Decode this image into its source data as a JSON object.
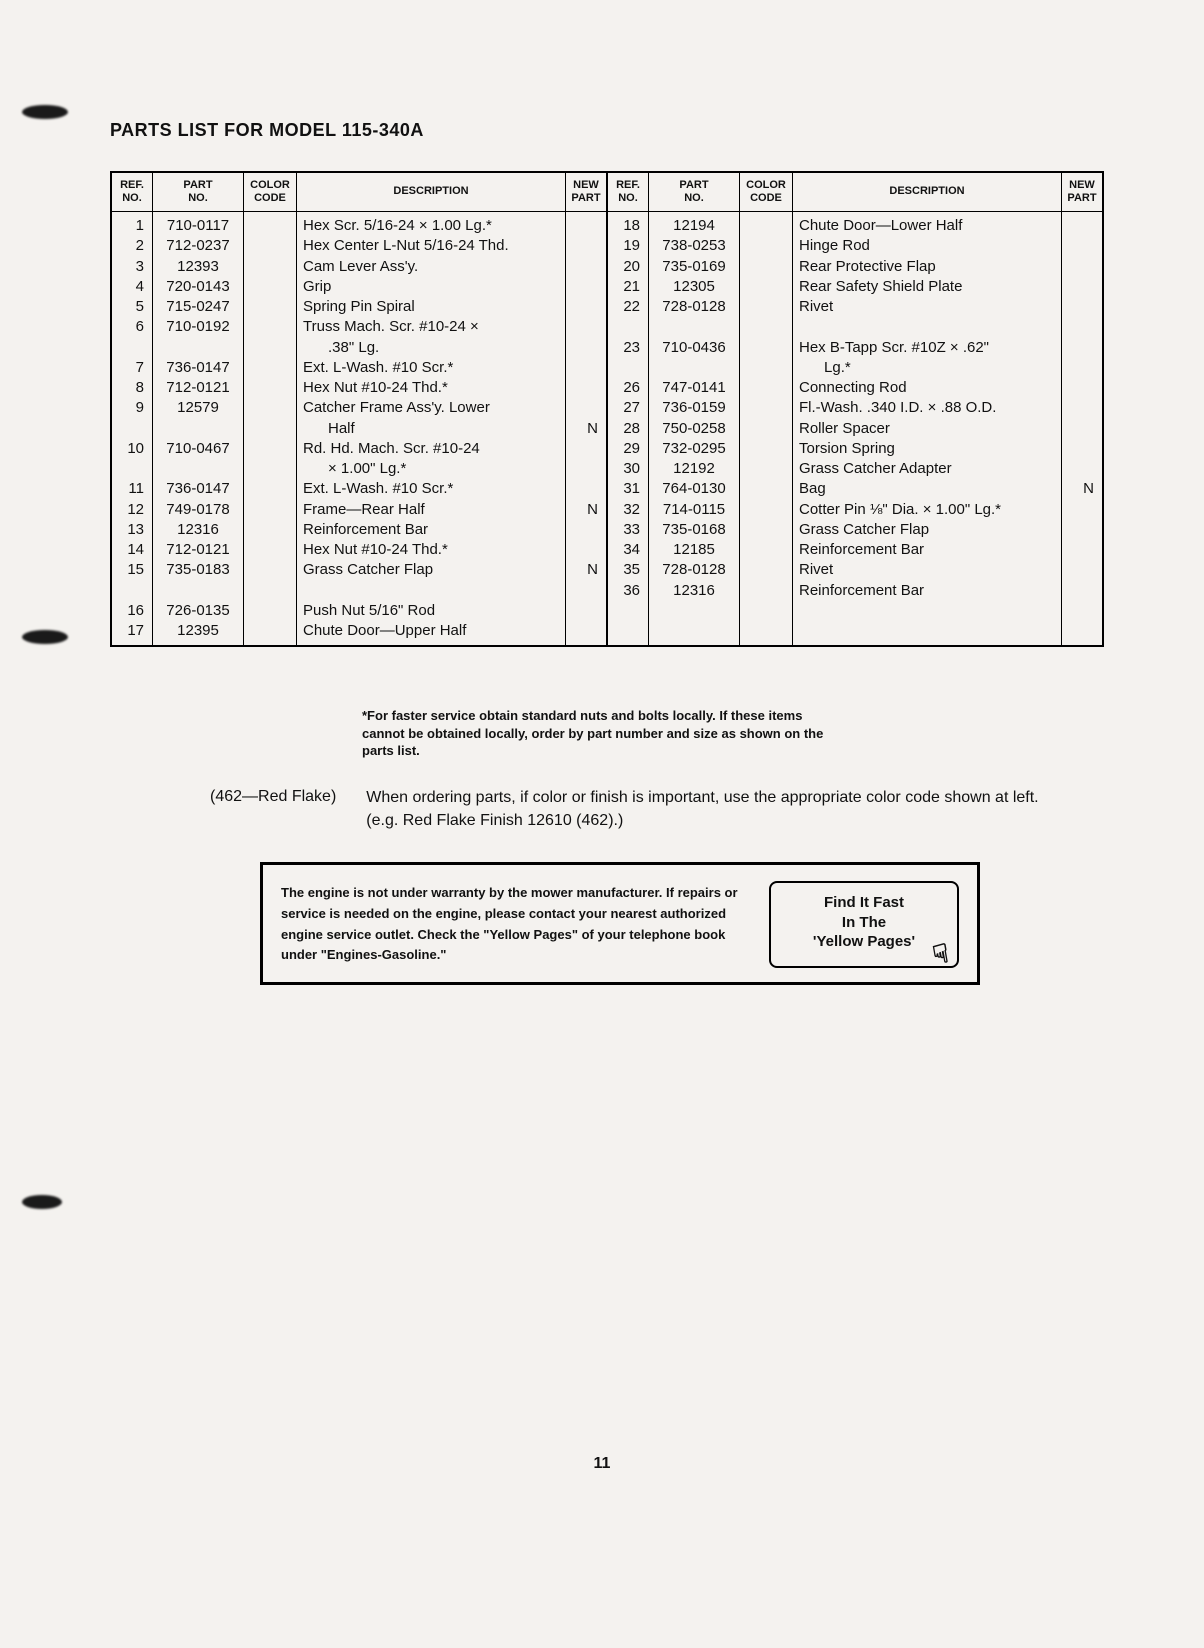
{
  "title": "PARTS LIST FOR MODEL 115-340A",
  "page_number": "11",
  "table": {
    "headers": {
      "ref": "REF.\nNO.",
      "part": "PART\nNO.",
      "color": "COLOR\nCODE",
      "desc": "DESCRIPTION",
      "new": "NEW\nPART"
    },
    "left": [
      {
        "ref": "1",
        "part": "710-0117",
        "color": "",
        "desc": "Hex Scr. 5/16-24 × 1.00 Lg.*",
        "new": ""
      },
      {
        "ref": "2",
        "part": "712-0237",
        "color": "",
        "desc": "Hex Center L-Nut 5/16-24 Thd.",
        "new": ""
      },
      {
        "ref": "3",
        "part": "12393",
        "color": "",
        "desc": "Cam Lever Ass'y.",
        "new": ""
      },
      {
        "ref": "4",
        "part": "720-0143",
        "color": "",
        "desc": "Grip",
        "new": ""
      },
      {
        "ref": "5",
        "part": "715-0247",
        "color": "",
        "desc": "Spring Pin Spiral",
        "new": ""
      },
      {
        "ref": "6",
        "part": "710-0192",
        "color": "",
        "desc": "Truss Mach. Scr. #10-24 ×",
        "new": ""
      },
      {
        "ref": "",
        "part": "",
        "color": "",
        "desc": "      .38\" Lg.",
        "new": ""
      },
      {
        "ref": "7",
        "part": "736-0147",
        "color": "",
        "desc": "Ext. L-Wash. #10 Scr.*",
        "new": ""
      },
      {
        "ref": "8",
        "part": "712-0121",
        "color": "",
        "desc": "Hex Nut #10-24 Thd.*",
        "new": ""
      },
      {
        "ref": "9",
        "part": "12579",
        "color": "",
        "desc": "Catcher Frame Ass'y. Lower",
        "new": ""
      },
      {
        "ref": "",
        "part": "",
        "color": "",
        "desc": "      Half",
        "new": "N"
      },
      {
        "ref": "10",
        "part": "710-0467",
        "color": "",
        "desc": "Rd. Hd. Mach. Scr. #10-24",
        "new": ""
      },
      {
        "ref": "",
        "part": "",
        "color": "",
        "desc": "      × 1.00\" Lg.*",
        "new": ""
      },
      {
        "ref": "11",
        "part": "736-0147",
        "color": "",
        "desc": "Ext. L-Wash. #10 Scr.*",
        "new": ""
      },
      {
        "ref": "12",
        "part": "749-0178",
        "color": "",
        "desc": "Frame—Rear Half",
        "new": "N"
      },
      {
        "ref": "13",
        "part": "12316",
        "color": "",
        "desc": "Reinforcement Bar",
        "new": ""
      },
      {
        "ref": "14",
        "part": "712-0121",
        "color": "",
        "desc": "Hex Nut #10-24 Thd.*",
        "new": ""
      },
      {
        "ref": "15",
        "part": "735-0183",
        "color": "",
        "desc": "Grass Catcher Flap",
        "new": "N"
      },
      {
        "ref": "",
        "part": "",
        "color": "",
        "desc": "",
        "new": ""
      },
      {
        "ref": "16",
        "part": "726-0135",
        "color": "",
        "desc": "Push Nut 5/16\" Rod",
        "new": ""
      },
      {
        "ref": "17",
        "part": "12395",
        "color": "",
        "desc": "Chute Door—Upper Half",
        "new": ""
      }
    ],
    "right": [
      {
        "ref": "18",
        "part": "12194",
        "color": "",
        "desc": "Chute Door—Lower Half",
        "new": ""
      },
      {
        "ref": "19",
        "part": "738-0253",
        "color": "",
        "desc": "Hinge Rod",
        "new": ""
      },
      {
        "ref": "20",
        "part": "735-0169",
        "color": "",
        "desc": "Rear Protective Flap",
        "new": ""
      },
      {
        "ref": "21",
        "part": "12305",
        "color": "",
        "desc": "Rear Safety Shield Plate",
        "new": ""
      },
      {
        "ref": "22",
        "part": "728-0128",
        "color": "",
        "desc": "Rivet",
        "new": ""
      },
      {
        "ref": "",
        "part": "",
        "color": "",
        "desc": "",
        "new": ""
      },
      {
        "ref": "23",
        "part": "710-0436",
        "color": "",
        "desc": "Hex B-Tapp Scr. #10Z × .62\"",
        "new": ""
      },
      {
        "ref": "",
        "part": "",
        "color": "",
        "desc": "      Lg.*",
        "new": ""
      },
      {
        "ref": "26",
        "part": "747-0141",
        "color": "",
        "desc": "Connecting Rod",
        "new": ""
      },
      {
        "ref": "27",
        "part": "736-0159",
        "color": "",
        "desc": "Fl.-Wash. .340 I.D. × .88 O.D.",
        "new": ""
      },
      {
        "ref": "28",
        "part": "750-0258",
        "color": "",
        "desc": "Roller Spacer",
        "new": ""
      },
      {
        "ref": "29",
        "part": "732-0295",
        "color": "",
        "desc": "Torsion Spring",
        "new": ""
      },
      {
        "ref": "30",
        "part": "12192",
        "color": "",
        "desc": "Grass Catcher Adapter",
        "new": ""
      },
      {
        "ref": "31",
        "part": "764-0130",
        "color": "",
        "desc": "Bag",
        "new": "N"
      },
      {
        "ref": "32",
        "part": "714-0115",
        "color": "",
        "desc": "Cotter Pin ⅛\" Dia. × 1.00\" Lg.*",
        "new": ""
      },
      {
        "ref": "33",
        "part": "735-0168",
        "color": "",
        "desc": "Grass Catcher Flap",
        "new": ""
      },
      {
        "ref": "34",
        "part": "12185",
        "color": "",
        "desc": "Reinforcement Bar",
        "new": ""
      },
      {
        "ref": "35",
        "part": "728-0128",
        "color": "",
        "desc": "Rivet",
        "new": ""
      },
      {
        "ref": "36",
        "part": "12316",
        "color": "",
        "desc": "Reinforcement Bar",
        "new": ""
      }
    ]
  },
  "footnote": "*For faster service obtain standard nuts and bolts locally. If these items cannot be obtained locally, order by part number and size as shown on the parts list.",
  "color_note": {
    "label": "(462—Red Flake)",
    "text": "When ordering parts, if color or finish is important, use the appropriate color code shown at left. (e.g. Red Flake Finish 12610 (462).)"
  },
  "warranty": {
    "text": "The engine is not under warranty by the mower manufacturer. If repairs or service is needed on the engine, please contact your nearest authorized engine service outlet. Check the \"Yellow Pages\" of your telephone book under \"Engines-Gasoline.\"",
    "badge_line1": "Find It Fast",
    "badge_line2": "In The",
    "badge_line3": "'Yellow Pages'"
  }
}
